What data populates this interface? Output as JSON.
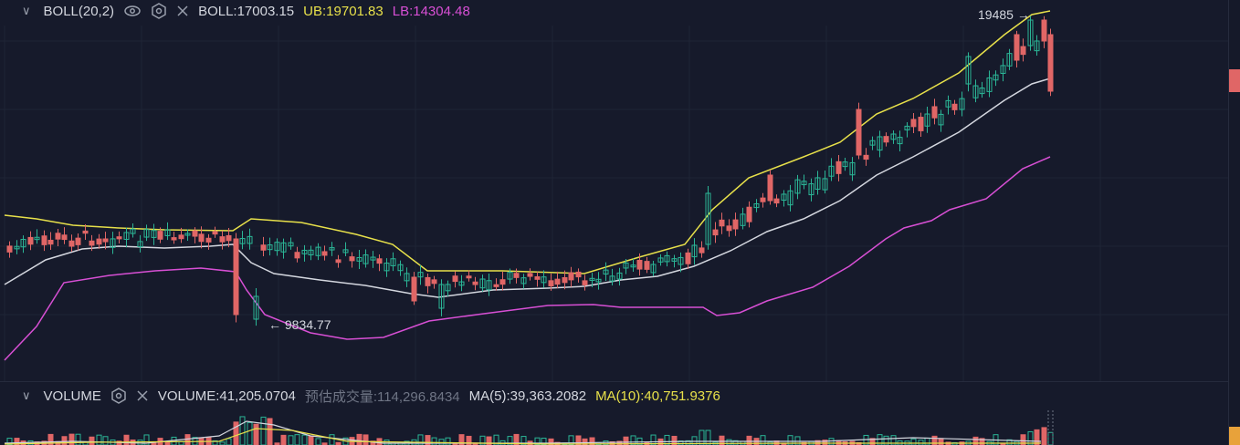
{
  "boll": {
    "name": "BOLL(20,2)",
    "mid": "BOLL:17003.15",
    "ub": "UB:19701.83",
    "lb": "LB:14304.48"
  },
  "volume": {
    "name": "VOLUME",
    "value": "VOLUME:41,205.0704",
    "estimate": "预估成交量:114,296.8434",
    "ma5": "MA(5):39,363.2082",
    "ma10": "MA(10):40,751.9376"
  },
  "annotations": {
    "high_label": "19485",
    "low_label": "9834.77"
  },
  "colors": {
    "up": "#2bb596",
    "down": "#e06666",
    "upper_band": "#e7e04a",
    "middle_band": "#d4d7df",
    "lower_band": "#d74fd4"
  }
}
